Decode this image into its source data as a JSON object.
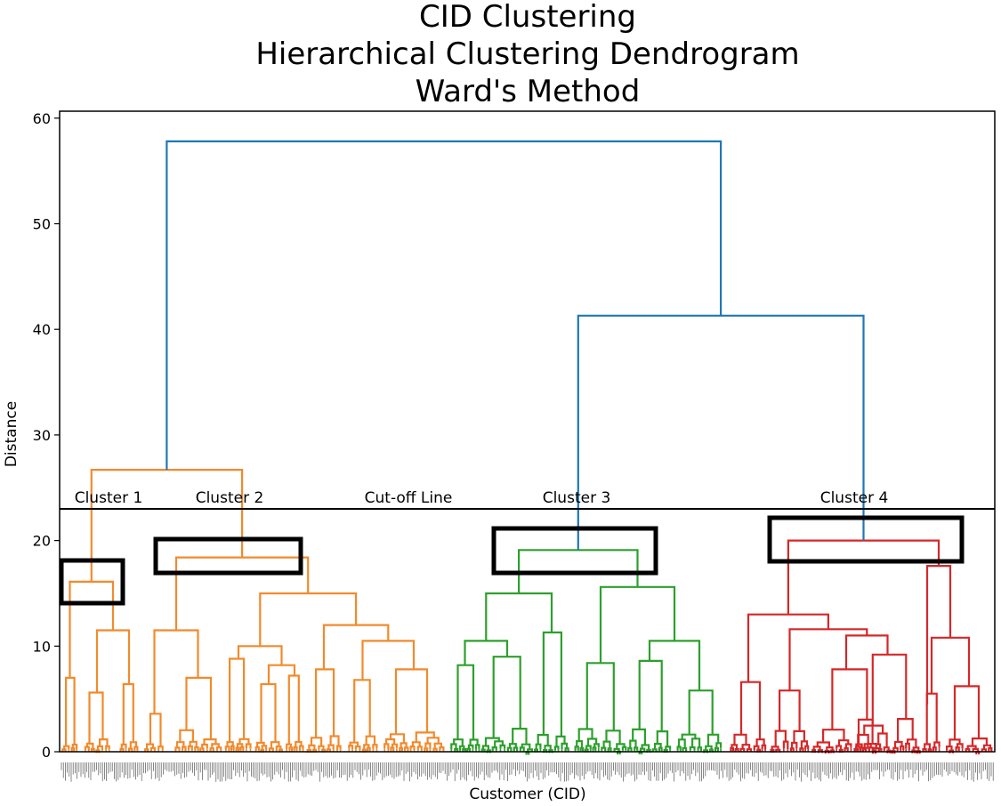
{
  "chart_data": {
    "type": "dendrogram",
    "title": [
      "CID Clustering",
      "Hierarchical Clustering Dendrogram",
      "Ward's Method"
    ],
    "xlabel": "Customer (CID)",
    "ylabel": "Distance",
    "ylim": [
      0,
      60
    ],
    "yticks": [
      0,
      10,
      20,
      30,
      40,
      50,
      60
    ],
    "grid": false,
    "cutoff": {
      "label": "Cut-off Line",
      "distance": 23
    },
    "colors": {
      "Cluster 1": "#f28a2c",
      "Cluster 2": "#f28a2c",
      "Cluster 3": "#2ca02c",
      "Cluster 4": "#d62728",
      "above_cut": "#1f77b4",
      "box": "#000000"
    },
    "merges": [
      {
        "name": "root",
        "distance": 57.8,
        "children": [
          "Clusters 1-2",
          "Clusters 3-4"
        ]
      },
      {
        "name": "Clusters 3-4",
        "distance": 41.3,
        "children": [
          "Cluster 3",
          "Cluster 4"
        ]
      },
      {
        "name": "Clusters 1-2",
        "distance": 26.7,
        "children": [
          "Cluster 1",
          "Cluster 2"
        ]
      },
      {
        "name": "Cluster 4",
        "distance": 20.0
      },
      {
        "name": "Cluster 3",
        "distance": 19.1
      },
      {
        "name": "Cluster 2",
        "distance": 18.4
      },
      {
        "name": "Cluster 1",
        "distance": 16.1
      }
    ],
    "annotations": [
      {
        "text": "Cluster 1"
      },
      {
        "text": "Cluster 2"
      },
      {
        "text": "Cut-off Line"
      },
      {
        "text": "Cluster 3"
      },
      {
        "text": "Cluster 4"
      }
    ]
  }
}
